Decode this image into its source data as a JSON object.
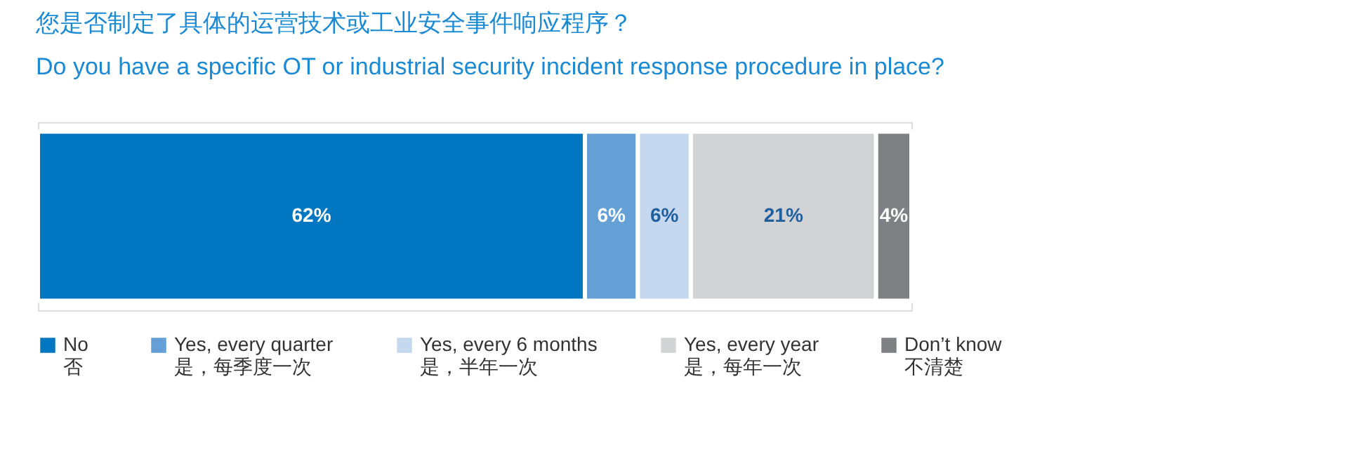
{
  "chart_data": {
    "type": "bar",
    "orientation": "horizontal",
    "stacked": true,
    "title": "您是否制定了具体的运营技术或工业安全事件响应程序？",
    "subtitle": "Do you have a specific OT or industrial security incident response procedure in place?",
    "categories": [
      null
    ],
    "series": [
      {
        "name": "No\n否",
        "color": "#0077c0",
        "values": [
          62
        ],
        "value_labels": [
          "62%"
        ]
      },
      {
        "name": "Yes, every quarter\n是，每季度一次",
        "color": "#64a0d6",
        "values": [
          6
        ],
        "value_labels": [
          "6%"
        ]
      },
      {
        "name": "Yes, every 6 months\n是，半年一次",
        "color": "#c5d8f0",
        "values": [
          6
        ],
        "value_labels": [
          "6%"
        ]
      },
      {
        "name": "Yes, every year\n是，每年一次",
        "color": "#d2d3d5",
        "values": [
          21
        ],
        "value_labels": [
          "21%"
        ]
      },
      {
        "name": "Don’t know\n不清楚",
        "color": "#7f8083",
        "values": [
          4
        ],
        "value_labels": [
          "4%"
        ]
      }
    ],
    "legend": "bottom"
  }
}
